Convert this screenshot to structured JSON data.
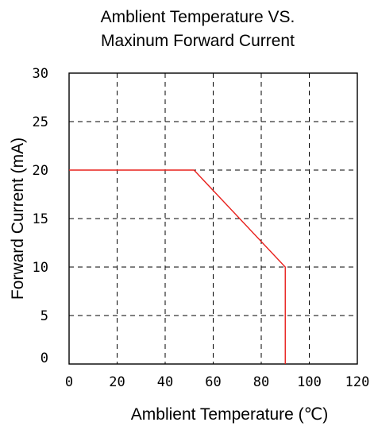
{
  "chart_data": {
    "type": "line",
    "title_lines": [
      "Amblient Temperature VS.",
      "Maxinum Forward Current"
    ],
    "xlabel": "Amblient Temperature (℃)",
    "ylabel": "Forward Current (mA)",
    "xlim": [
      0,
      120
    ],
    "ylim": [
      0,
      30
    ],
    "x_ticks": [
      0,
      20,
      40,
      60,
      80,
      100,
      120
    ],
    "y_ticks": [
      0,
      5,
      10,
      15,
      20,
      25,
      30
    ],
    "grid": true,
    "series_color": "#e8201c",
    "series": [
      {
        "x": [
          0,
          52,
          90,
          90
        ],
        "y": [
          20,
          20,
          10,
          0
        ]
      }
    ]
  }
}
